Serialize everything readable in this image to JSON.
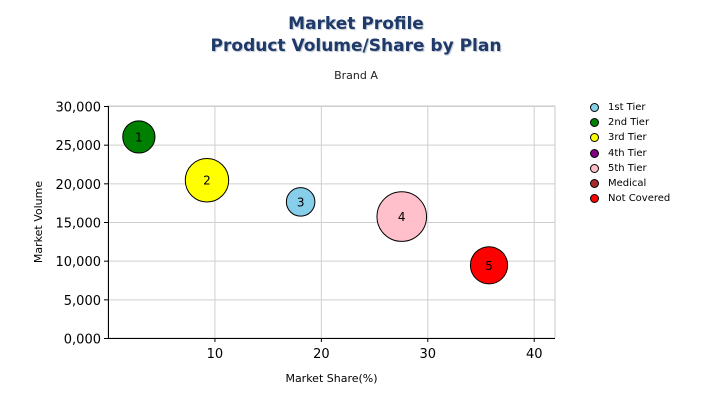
{
  "chart_data": {
    "type": "scatter",
    "title": "Market Profile",
    "subtitle": "Product Volume/Share by Plan",
    "caption": "Brand A",
    "xlabel": "Market Share(%)",
    "ylabel": "Market Volume",
    "xlim": [
      0,
      42
    ],
    "ylim": [
      0,
      30000
    ],
    "x_ticks": [
      10,
      20,
      30,
      40
    ],
    "x_tick_labels": [
      "10",
      "20",
      "30",
      "40"
    ],
    "y_ticks": [
      0,
      5000,
      10000,
      15000,
      20000,
      25000,
      30000
    ],
    "y_tick_labels": [
      "0,000",
      "5,000",
      "10,000",
      "15,000",
      "20,000",
      "25,000",
      "30,000"
    ],
    "grid": true,
    "legend_position": "right",
    "series": [
      {
        "name": "1st Tier",
        "color": "#87ceeb",
        "points": [
          {
            "x": 18.1,
            "y": 17600,
            "size": 2.3,
            "label": "3"
          }
        ]
      },
      {
        "name": "2nd Tier",
        "color": "#008000",
        "points": [
          {
            "x": 2.9,
            "y": 26000,
            "size": 2.6,
            "label": "1"
          }
        ]
      },
      {
        "name": "3rd Tier",
        "color": "#ffff00",
        "points": [
          {
            "x": 9.3,
            "y": 20400,
            "size": 3.5,
            "label": "2"
          }
        ]
      },
      {
        "name": "4th Tier",
        "color": "#800080",
        "points": []
      },
      {
        "name": "5th Tier",
        "color": "#ffc0cb",
        "points": [
          {
            "x": 27.6,
            "y": 15700,
            "size": 4.0,
            "label": "4"
          }
        ]
      },
      {
        "name": "Medical",
        "color": "#a52a2a",
        "points": []
      },
      {
        "name": "Not Covered",
        "color": "#ff0000",
        "points": [
          {
            "x": 35.8,
            "y": 9400,
            "size": 3.0,
            "label": "5"
          }
        ]
      }
    ]
  }
}
